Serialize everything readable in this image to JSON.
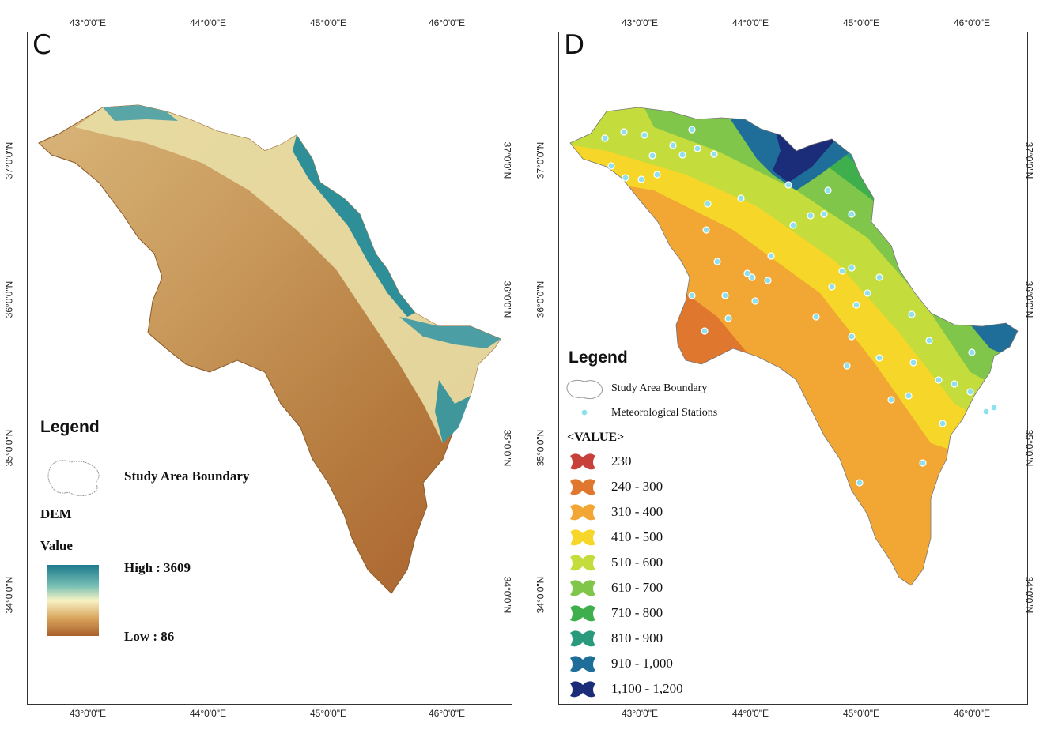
{
  "panel_c": {
    "letter": "C",
    "top_lon_ticks": [
      "43°0'0\"E",
      "44°0'0\"E",
      "45°0'0\"E",
      "46°0'0\"E"
    ],
    "bottom_lon_ticks": [
      "43°0'0\"E",
      "44°0'0\"E",
      "45°0'0\"E",
      "46°0'0\"E"
    ],
    "left_lat_ticks": [
      "37°0'0\"N",
      "36°0'0\"N",
      "35°0'0\"N",
      "34°0'0\"N"
    ],
    "right_lat_ticks": [
      "37°0'0\"N",
      "36°0'0\"N",
      "35°0'0\"N",
      "34°0'0\"N"
    ],
    "legend": {
      "title": "Legend",
      "boundary_label": "Study Area Boundary",
      "dem_label": "DEM",
      "value_label": "Value",
      "high_label": "High : 3609",
      "low_label": "Low : 86",
      "ramp_colors": [
        "#1d7a8c",
        "#78c0b4",
        "#f7f3c4",
        "#d9a45c",
        "#a9602c"
      ]
    }
  },
  "panel_d": {
    "letter": "D",
    "top_lon_ticks": [
      "43°0'0\"E",
      "44°0'0\"E",
      "45°0'0\"E",
      "46°0'0\"E"
    ],
    "bottom_lon_ticks": [
      "43°0'0\"E",
      "44°0'0\"E",
      "45°0'0\"E",
      "46°0'0\"E"
    ],
    "left_lat_ticks": [
      "37°0'0\"N",
      "36°0'0\"N",
      "35°0'0\"N",
      "34°0'0\"N"
    ],
    "right_lat_ticks": [
      "37°0'0\"N",
      "36°0'0\"N",
      "35°0'0\"N",
      "34°0'0\"N"
    ],
    "legend": {
      "title": "Legend",
      "boundary_label": "Study Area Boundary",
      "stations_label": "Meteorological Stations",
      "value_header": "<VALUE>",
      "classes": [
        {
          "label": "230",
          "color": "#c8403a"
        },
        {
          "label": "240 - 300",
          "color": "#e0772e"
        },
        {
          "label": "310 - 400",
          "color": "#f2a634"
        },
        {
          "label": "410 - 500",
          "color": "#f6d628"
        },
        {
          "label": "510 - 600",
          "color": "#c5dd3c"
        },
        {
          "label": "610 - 700",
          "color": "#7fc64a"
        },
        {
          "label": "710 - 800",
          "color": "#3fae4c"
        },
        {
          "label": "810 - 900",
          "color": "#2a9a7e"
        },
        {
          "label": "910 - 1,000",
          "color": "#1f6e9a"
        },
        {
          "label": "1,100 - 1,200",
          "color": "#1b2d78"
        }
      ]
    }
  }
}
